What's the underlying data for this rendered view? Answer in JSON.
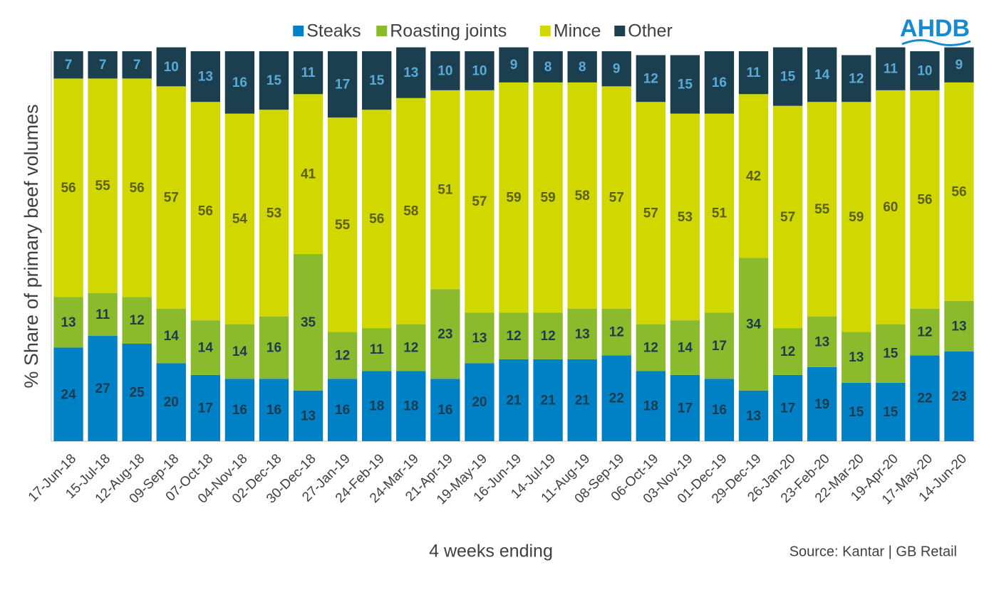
{
  "chart_data": {
    "type": "stacked_bar",
    "logo": "AHDB",
    "y_label": "% Share of primary beef volumes",
    "x_label": "4 weeks ending",
    "source": "Source: Kantar | GB Retail",
    "legend": "top",
    "ylim": [
      0,
      100
    ],
    "categories": [
      "17-Jun-18",
      "15-Jul-18",
      "12-Aug-18",
      "09-Sep-18",
      "07-Oct-18",
      "04-Nov-18",
      "02-Dec-18",
      "30-Dec-18",
      "27-Jan-19",
      "24-Feb-19",
      "24-Mar-19",
      "21-Apr-19",
      "19-May-19",
      "16-Jun-19",
      "14-Jul-19",
      "11-Aug-19",
      "08-Sep-19",
      "06-Oct-19",
      "03-Nov-19",
      "01-Dec-19",
      "29-Dec-19",
      "26-Jan-20",
      "23-Feb-20",
      "22-Mar-20",
      "19-Apr-20",
      "17-May-20",
      "14-Jun-20"
    ],
    "series": [
      {
        "name": "Steaks",
        "color": "#0081c6",
        "label_color": "#1e3b4d",
        "values": [
          24,
          27,
          25,
          20,
          17,
          16,
          16,
          13,
          16,
          18,
          18,
          16,
          20,
          21,
          21,
          21,
          22,
          18,
          17,
          16,
          13,
          17,
          19,
          15,
          15,
          22,
          23
        ]
      },
      {
        "name": "Roasting joints",
        "color": "#8cba2d",
        "label_color": "#1e3b4d",
        "values": [
          13,
          11,
          12,
          14,
          14,
          14,
          16,
          35,
          12,
          11,
          12,
          23,
          13,
          12,
          12,
          13,
          12,
          12,
          14,
          17,
          34,
          12,
          13,
          13,
          15,
          12,
          13
        ]
      },
      {
        "name": "Mince",
        "color": "#d1d700",
        "label_color": "#5b5f16",
        "values": [
          56,
          55,
          56,
          57,
          56,
          54,
          53,
          41,
          55,
          56,
          58,
          51,
          57,
          59,
          59,
          58,
          57,
          57,
          53,
          51,
          42,
          57,
          55,
          59,
          60,
          56,
          56
        ]
      },
      {
        "name": "Other",
        "color": "#1c3f50",
        "label_color": "#5aaad6",
        "values": [
          7,
          7,
          7,
          10,
          13,
          16,
          15,
          11,
          17,
          15,
          13,
          10,
          10,
          9,
          8,
          8,
          9,
          12,
          15,
          16,
          11,
          15,
          14,
          12,
          11,
          10,
          9
        ]
      }
    ]
  }
}
